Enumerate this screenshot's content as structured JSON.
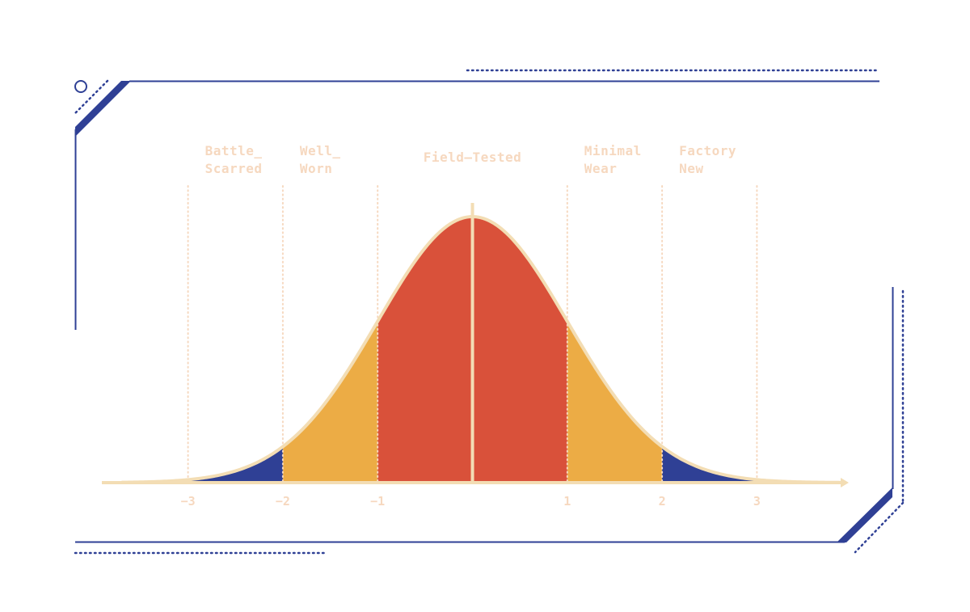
{
  "colors": {
    "frame": "#2F4095",
    "dot_frame": "#2F4095",
    "curve_stroke": "#F3DDB4",
    "axis": "#F3DDB4",
    "gridline": "#F6D8BF",
    "label_text": "#F6D8BF",
    "tick_text": "#F6D8BF",
    "center": "#D9513A",
    "middle": "#ECAC45",
    "tail": "#2F4095"
  },
  "chart_data": {
    "type": "area",
    "title": "",
    "xlabel": "",
    "ylabel": "",
    "distribution": "standard normal",
    "mean": 0,
    "std": 1,
    "xlim": [
      -3.7,
      3.9
    ],
    "ylim": [
      0,
      0.41
    ],
    "ticks": [
      {
        "value": -3,
        "label": "−3"
      },
      {
        "value": -2,
        "label": "−2"
      },
      {
        "value": -1,
        "label": "−1"
      },
      {
        "value": 1,
        "label": "1"
      },
      {
        "value": 2,
        "label": "2"
      },
      {
        "value": 3,
        "label": "3"
      }
    ],
    "gridlines": [
      -3,
      -2,
      -1,
      1,
      2,
      3
    ],
    "bands": [
      {
        "name": "left-tail",
        "from": -3,
        "to": -2,
        "color_key": "tail"
      },
      {
        "name": "left-middle",
        "from": -2,
        "to": -1,
        "color_key": "middle"
      },
      {
        "name": "center",
        "from": -1,
        "to": 1,
        "color_key": "center"
      },
      {
        "name": "right-middle",
        "from": 1,
        "to": 2,
        "color_key": "middle"
      },
      {
        "name": "right-tail",
        "from": 2,
        "to": 3,
        "color_key": "tail"
      }
    ],
    "zones": [
      {
        "lines": [
          "Battle_",
          "Scarred"
        ],
        "from": -3,
        "to": -2
      },
      {
        "lines": [
          "Well_",
          "Worn"
        ],
        "from": -2,
        "to": -1
      },
      {
        "lines": [
          "Field—Tested"
        ],
        "from": -1,
        "to": 1
      },
      {
        "lines": [
          "Minimal",
          "Wear"
        ],
        "from": 1,
        "to": 2
      },
      {
        "lines": [
          "Factory",
          "New"
        ],
        "from": 2,
        "to": 3
      }
    ]
  }
}
